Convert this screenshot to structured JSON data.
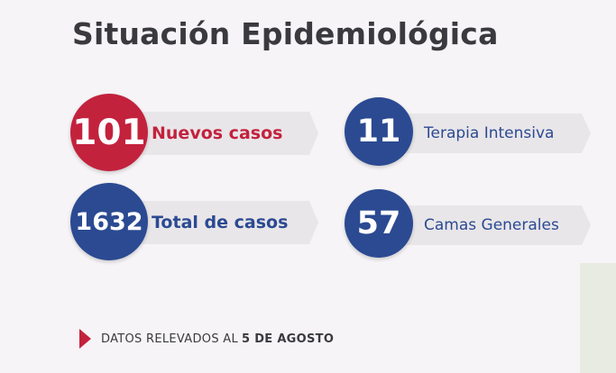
{
  "title": "Situación Epidemiológica",
  "stats": {
    "nuevos_casos": {
      "value": "101",
      "label": "Nuevos casos"
    },
    "total_casos": {
      "value": "1632",
      "label": "Total de casos"
    },
    "terapia_intensiva": {
      "value": "11",
      "label": "Terapia Intensiva"
    },
    "camas_generales": {
      "value": "57",
      "label": "Camas Generales"
    }
  },
  "footer": {
    "prefix": "DATOS RELEVADOS AL",
    "date": "5 DE AGOSTO"
  },
  "colors": {
    "accent_red": "#c3223d",
    "accent_blue": "#2b4a92",
    "title_text": "#3a3a3e",
    "band": "#e9e6e9",
    "background": "#f6f4f6"
  },
  "icons": {
    "footer_marker": "triangle-right-icon"
  }
}
